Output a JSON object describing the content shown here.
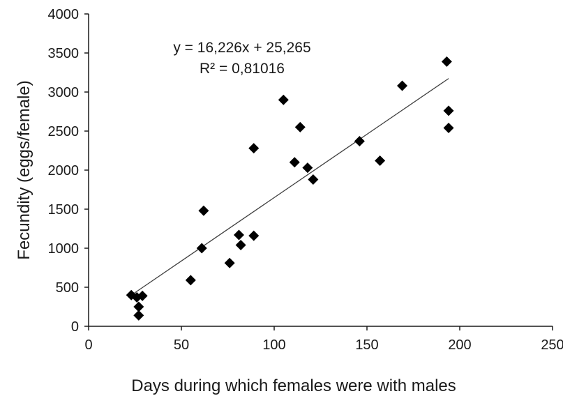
{
  "chart_data": {
    "type": "scatter",
    "xlabel": "Days during which females were with males",
    "ylabel": "Fecundity (eggs/female)",
    "xlim": [
      0,
      250
    ],
    "ylim": [
      0,
      4000
    ],
    "x_ticks": [
      "0",
      "50",
      "100",
      "150",
      "200",
      "250"
    ],
    "y_ticks": [
      "0",
      "500",
      "1000",
      "1500",
      "2000",
      "2500",
      "3000",
      "3500",
      "4000"
    ],
    "grid": false,
    "legend": "none",
    "marker": "diamond",
    "marker_color": "#000000",
    "trendline_color": "#404040",
    "series": [
      {
        "points": [
          {
            "x": 23,
            "y": 400
          },
          {
            "x": 26,
            "y": 370
          },
          {
            "x": 29,
            "y": 390
          },
          {
            "x": 27,
            "y": 250
          },
          {
            "x": 27,
            "y": 140
          },
          {
            "x": 55,
            "y": 590
          },
          {
            "x": 61,
            "y": 1000
          },
          {
            "x": 62,
            "y": 1480
          },
          {
            "x": 76,
            "y": 810
          },
          {
            "x": 81,
            "y": 1170
          },
          {
            "x": 82,
            "y": 1040
          },
          {
            "x": 89,
            "y": 1160
          },
          {
            "x": 89,
            "y": 2280
          },
          {
            "x": 105,
            "y": 2900
          },
          {
            "x": 111,
            "y": 2100
          },
          {
            "x": 114,
            "y": 2550
          },
          {
            "x": 118,
            "y": 2030
          },
          {
            "x": 121,
            "y": 1880
          },
          {
            "x": 146,
            "y": 2370
          },
          {
            "x": 157,
            "y": 2120
          },
          {
            "x": 169,
            "y": 3080
          },
          {
            "x": 193,
            "y": 3390
          },
          {
            "x": 194,
            "y": 2760
          },
          {
            "x": 194,
            "y": 2540
          }
        ]
      }
    ],
    "trendline": {
      "slope": 16.226,
      "intercept": 25.265,
      "x_range": [
        23,
        194
      ]
    },
    "annotations": {
      "equation": "y = 16,226x + 25,265",
      "r_squared": "R² = 0,81016"
    }
  }
}
